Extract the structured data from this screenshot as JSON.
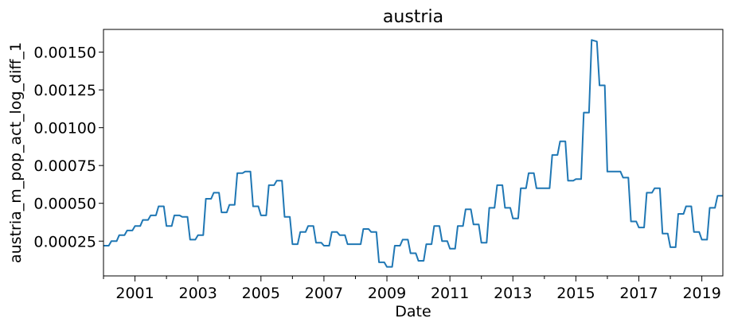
{
  "chart_data": {
    "type": "line",
    "title": "austria",
    "xlabel": "Date",
    "ylabel": "austria_m_pop_act_log_diff_1",
    "x_axis_kind": "date",
    "xlim": [
      "2000-01",
      "2019-09"
    ],
    "ylim": [
      2e-05,
      0.000165
    ],
    "ylim_scale": 0.01,
    "x_ticks": [
      "2001",
      "2003",
      "2005",
      "2007",
      "2009",
      "2011",
      "2013",
      "2015",
      "2017",
      "2019"
    ],
    "y_ticks": [
      "0.00025",
      "0.00050",
      "0.00075",
      "0.00100",
      "0.00125",
      "0.00150"
    ],
    "y_tick_values": [
      0.00025,
      0.0005,
      0.00075,
      0.001,
      0.00125,
      0.0015
    ],
    "grid": false,
    "series": [
      {
        "color": "#1f77b4",
        "points": [
          [
            "2000-01",
            0.00022
          ],
          [
            "2000-03",
            0.00022
          ],
          [
            "2000-04",
            0.00025
          ],
          [
            "2000-06",
            0.00025
          ],
          [
            "2000-07",
            0.00029
          ],
          [
            "2000-09",
            0.00029
          ],
          [
            "2000-10",
            0.00032
          ],
          [
            "2000-12",
            0.00032
          ],
          [
            "2001-01",
            0.00035
          ],
          [
            "2001-03",
            0.00035
          ],
          [
            "2001-04",
            0.00039
          ],
          [
            "2001-06",
            0.00039
          ],
          [
            "2001-07",
            0.00042
          ],
          [
            "2001-09",
            0.00042
          ],
          [
            "2001-10",
            0.00048
          ],
          [
            "2001-12",
            0.00048
          ],
          [
            "2002-01",
            0.00035
          ],
          [
            "2002-03",
            0.00035
          ],
          [
            "2002-04",
            0.00042
          ],
          [
            "2002-06",
            0.00042
          ],
          [
            "2002-07",
            0.00041
          ],
          [
            "2002-09",
            0.00041
          ],
          [
            "2002-10",
            0.00026
          ],
          [
            "2002-12",
            0.00026
          ],
          [
            "2003-01",
            0.00029
          ],
          [
            "2003-03",
            0.00029
          ],
          [
            "2003-04",
            0.00053
          ],
          [
            "2003-06",
            0.00053
          ],
          [
            "2003-07",
            0.00057
          ],
          [
            "2003-09",
            0.00057
          ],
          [
            "2003-10",
            0.00044
          ],
          [
            "2003-12",
            0.00044
          ],
          [
            "2004-01",
            0.00049
          ],
          [
            "2004-03",
            0.00049
          ],
          [
            "2004-04",
            0.0007
          ],
          [
            "2004-06",
            0.0007
          ],
          [
            "2004-07",
            0.00071
          ],
          [
            "2004-09",
            0.00071
          ],
          [
            "2004-10",
            0.00048
          ],
          [
            "2004-12",
            0.00048
          ],
          [
            "2005-01",
            0.00042
          ],
          [
            "2005-03",
            0.00042
          ],
          [
            "2005-04",
            0.00062
          ],
          [
            "2005-06",
            0.00062
          ],
          [
            "2005-07",
            0.00065
          ],
          [
            "2005-09",
            0.00065
          ],
          [
            "2005-10",
            0.00041
          ],
          [
            "2005-12",
            0.00041
          ],
          [
            "2006-01",
            0.00023
          ],
          [
            "2006-03",
            0.00023
          ],
          [
            "2006-04",
            0.00031
          ],
          [
            "2006-06",
            0.00031
          ],
          [
            "2006-07",
            0.00035
          ],
          [
            "2006-09",
            0.00035
          ],
          [
            "2006-10",
            0.00024
          ],
          [
            "2006-12",
            0.00024
          ],
          [
            "2007-01",
            0.00022
          ],
          [
            "2007-03",
            0.00022
          ],
          [
            "2007-04",
            0.00031
          ],
          [
            "2007-06",
            0.00031
          ],
          [
            "2007-07",
            0.00029
          ],
          [
            "2007-09",
            0.00029
          ],
          [
            "2007-10",
            0.00023
          ],
          [
            "2007-12",
            0.00023
          ],
          [
            "2008-01",
            0.00023
          ],
          [
            "2008-03",
            0.00023
          ],
          [
            "2008-04",
            0.00033
          ],
          [
            "2008-06",
            0.00033
          ],
          [
            "2008-07",
            0.00031
          ],
          [
            "2008-09",
            0.00031
          ],
          [
            "2008-10",
            0.00011
          ],
          [
            "2008-12",
            0.00011
          ],
          [
            "2009-01",
            8e-05
          ],
          [
            "2009-03",
            8e-05
          ],
          [
            "2009-04",
            0.00022
          ],
          [
            "2009-06",
            0.00022
          ],
          [
            "2009-07",
            0.00026
          ],
          [
            "2009-09",
            0.00026
          ],
          [
            "2009-10",
            0.00017
          ],
          [
            "2009-12",
            0.00017
          ],
          [
            "2010-01",
            0.00012
          ],
          [
            "2010-03",
            0.00012
          ],
          [
            "2010-04",
            0.00023
          ],
          [
            "2010-06",
            0.00023
          ],
          [
            "2010-07",
            0.00035
          ],
          [
            "2010-09",
            0.00035
          ],
          [
            "2010-10",
            0.00025
          ],
          [
            "2010-12",
            0.00025
          ],
          [
            "2011-01",
            0.0002
          ],
          [
            "2011-03",
            0.0002
          ],
          [
            "2011-04",
            0.00035
          ],
          [
            "2011-06",
            0.00035
          ],
          [
            "2011-07",
            0.00046
          ],
          [
            "2011-09",
            0.00046
          ],
          [
            "2011-10",
            0.00036
          ],
          [
            "2011-12",
            0.00036
          ],
          [
            "2012-01",
            0.00024
          ],
          [
            "2012-03",
            0.00024
          ],
          [
            "2012-04",
            0.00047
          ],
          [
            "2012-06",
            0.00047
          ],
          [
            "2012-07",
            0.00062
          ],
          [
            "2012-09",
            0.00062
          ],
          [
            "2012-10",
            0.00047
          ],
          [
            "2012-12",
            0.00047
          ],
          [
            "2013-01",
            0.0004
          ],
          [
            "2013-03",
            0.0004
          ],
          [
            "2013-04",
            0.0006
          ],
          [
            "2013-06",
            0.0006
          ],
          [
            "2013-07",
            0.0007
          ],
          [
            "2013-09",
            0.0007
          ],
          [
            "2013-10",
            0.0006
          ],
          [
            "2013-12",
            0.0006
          ],
          [
            "2014-01",
            0.0006
          ],
          [
            "2014-03",
            0.0006
          ],
          [
            "2014-04",
            0.00082
          ],
          [
            "2014-06",
            0.00082
          ],
          [
            "2014-07",
            0.00091
          ],
          [
            "2014-09",
            0.00091
          ],
          [
            "2014-10",
            0.00065
          ],
          [
            "2014-12",
            0.00065
          ],
          [
            "2015-01",
            0.00066
          ],
          [
            "2015-03",
            0.00066
          ],
          [
            "2015-04",
            0.0011
          ],
          [
            "2015-06",
            0.0011
          ],
          [
            "2015-07",
            0.00158
          ],
          [
            "2015-09",
            0.00157
          ],
          [
            "2015-10",
            0.00128
          ],
          [
            "2015-12",
            0.00128
          ],
          [
            "2016-01",
            0.00071
          ],
          [
            "2016-03",
            0.00071
          ],
          [
            "2016-04",
            0.00071
          ],
          [
            "2016-06",
            0.00071
          ],
          [
            "2016-07",
            0.00067
          ],
          [
            "2016-09",
            0.00067
          ],
          [
            "2016-10",
            0.00038
          ],
          [
            "2016-12",
            0.00038
          ],
          [
            "2017-01",
            0.00034
          ],
          [
            "2017-03",
            0.00034
          ],
          [
            "2017-04",
            0.00057
          ],
          [
            "2017-06",
            0.00057
          ],
          [
            "2017-07",
            0.0006
          ],
          [
            "2017-09",
            0.0006
          ],
          [
            "2017-10",
            0.0003
          ],
          [
            "2017-12",
            0.0003
          ],
          [
            "2018-01",
            0.00021
          ],
          [
            "2018-03",
            0.00021
          ],
          [
            "2018-04",
            0.00043
          ],
          [
            "2018-06",
            0.00043
          ],
          [
            "2018-07",
            0.00048
          ],
          [
            "2018-09",
            0.00048
          ],
          [
            "2018-10",
            0.00031
          ],
          [
            "2018-12",
            0.00031
          ],
          [
            "2019-01",
            0.00026
          ],
          [
            "2019-03",
            0.00026
          ],
          [
            "2019-04",
            0.00047
          ],
          [
            "2019-06",
            0.00047
          ],
          [
            "2019-07",
            0.00055
          ],
          [
            "2019-09",
            0.00055
          ]
        ]
      }
    ]
  }
}
